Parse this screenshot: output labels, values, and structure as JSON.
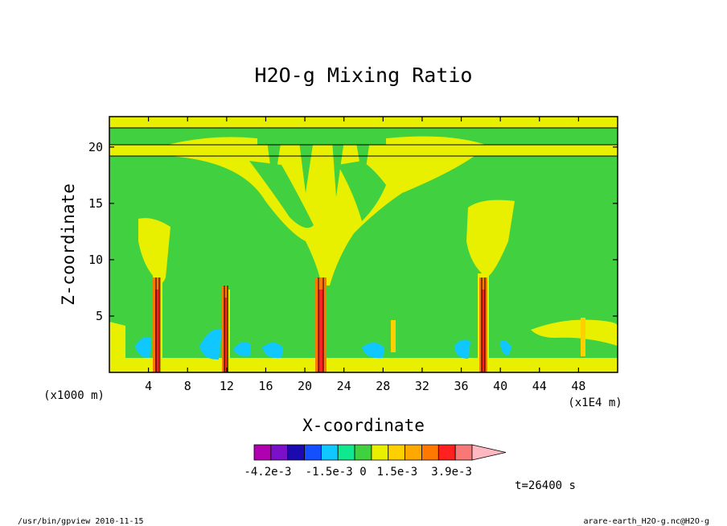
{
  "chart_data": {
    "type": "heatmap",
    "title": "H2O-g Mixing Ratio",
    "xlabel": "X-coordinate",
    "ylabel": "Z-coordinate",
    "x_unit_left": "(x1000 m)",
    "x_unit_right": "(x1E4 m)",
    "xlim": [
      0,
      52
    ],
    "ylim": [
      0,
      22.7
    ],
    "x_ticks": [
      "4",
      "8",
      "12",
      "16",
      "20",
      "24",
      "28",
      "32",
      "36",
      "40",
      "44",
      "48"
    ],
    "x_tick_values": [
      4,
      8,
      12,
      16,
      20,
      24,
      28,
      32,
      36,
      40,
      44,
      48
    ],
    "y_ticks": [
      "5",
      "10",
      "15",
      "20"
    ],
    "y_tick_values": [
      5,
      10,
      15,
      20
    ],
    "colorbar": {
      "colors": [
        "#b000b0",
        "#7a10c8",
        "#1a0ab0",
        "#1450ff",
        "#10c8ff",
        "#10e890",
        "#40d040",
        "#e8f000",
        "#ffd000",
        "#ffa800",
        "#ff7800",
        "#ff2020",
        "#f87878",
        "#ffb8c0"
      ],
      "labels": [
        "-4.2e-3",
        "-1.5e-3",
        "0",
        "1.5e-3",
        "3.9e-3"
      ],
      "label_values": [
        -0.0042,
        -0.0015,
        0,
        0.0015,
        0.0039
      ]
    },
    "grid": false
  },
  "time_label": "t=26400 s",
  "footer": {
    "left": "/usr/bin/gpview  2010-11-15",
    "right": "arare-earth_H2O-g.nc@H2O-g"
  }
}
